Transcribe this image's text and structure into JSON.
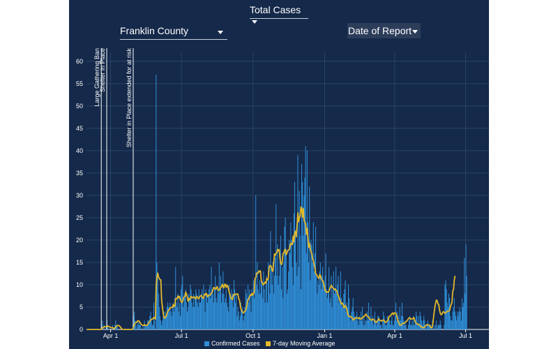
{
  "controls": {
    "metric": "Total Cases",
    "county": "Franklin County",
    "date_basis": "Date of Report"
  },
  "chart_data": {
    "type": "bar",
    "y_ticks": [
      0,
      5,
      10,
      15,
      20,
      25,
      30,
      35,
      40,
      45,
      50,
      55,
      60
    ],
    "ylim": [
      0,
      62
    ],
    "grid": true,
    "x_ticks": [
      "Apr 1",
      "Jul 1",
      "Oct 1",
      "Jan 1",
      "Apr 1",
      "Jul 1"
    ],
    "x_tick_dates": [
      "2020-04-01",
      "2020-07-01",
      "2020-10-01",
      "2021-01-01",
      "2021-04-01",
      "2021-07-01"
    ],
    "x_range": [
      "2020-03-01",
      "2021-07-31"
    ],
    "legend_position": "bottom",
    "annotations": [
      {
        "date": "2020-03-20",
        "label": "Large Gathering Ban"
      },
      {
        "date": "2020-03-27",
        "label": "Shelter in Place"
      },
      {
        "date": "2020-04-30",
        "label": "Shelter in Place extended for at risk"
      }
    ],
    "series": [
      {
        "name": "Confirmed Cases",
        "kind": "bar",
        "color": "#2f8fd8",
        "start_date": "2020-03-01",
        "values": [
          0,
          0,
          0,
          0,
          0,
          0,
          0,
          0,
          0,
          0,
          0,
          0,
          0,
          0,
          0,
          0,
          0,
          0,
          0,
          1,
          2,
          0,
          1,
          0,
          0,
          1,
          2,
          1,
          0,
          0,
          0,
          0,
          0,
          1,
          0,
          0,
          1,
          2,
          1,
          1,
          0,
          0,
          0,
          0,
          0,
          0,
          0,
          0,
          0,
          0,
          0,
          0,
          0,
          0,
          0,
          0,
          0,
          0,
          0,
          1,
          3,
          4,
          2,
          1,
          0,
          2,
          1,
          2,
          1,
          1,
          0,
          0,
          1,
          0,
          2,
          1,
          1,
          1,
          2,
          2,
          2,
          3,
          4,
          2,
          1,
          1,
          6,
          2,
          0,
          57,
          15,
          12,
          8,
          5,
          3,
          2,
          1,
          2,
          3,
          4,
          3,
          4,
          3,
          5,
          6,
          5,
          4,
          6,
          4,
          3,
          5,
          6,
          4,
          7,
          14,
          6,
          5,
          8,
          4,
          6,
          3,
          9,
          10,
          12,
          5,
          8,
          7,
          9,
          6,
          4,
          5,
          8,
          7,
          10,
          9,
          6,
          5,
          8,
          5,
          7,
          9,
          8,
          6,
          5,
          9,
          6,
          6,
          8,
          9,
          7,
          10,
          7,
          4,
          9,
          8,
          6,
          8,
          9,
          10,
          7,
          14,
          9,
          8,
          6,
          9,
          12,
          7,
          6,
          9,
          8,
          15,
          9,
          12,
          6,
          8,
          13,
          8,
          6,
          7,
          9,
          6,
          5,
          4,
          10,
          8,
          7,
          9,
          8,
          5,
          11,
          9,
          6,
          8,
          3,
          5,
          4,
          2,
          3,
          6,
          4,
          5,
          2,
          3,
          5,
          9,
          8,
          7,
          10,
          6,
          9,
          8,
          4,
          9,
          8,
          11,
          7,
          9,
          30,
          10,
          15,
          9,
          8,
          11,
          8,
          12,
          10,
          7,
          13,
          9,
          6,
          10,
          12,
          6,
          15,
          11,
          8,
          22,
          14,
          10,
          15,
          8,
          12,
          16,
          28,
          12,
          19,
          10,
          12,
          17,
          21,
          9,
          14,
          7,
          15,
          23,
          25,
          18,
          8,
          9,
          13,
          20,
          17,
          24,
          20,
          14,
          10,
          26,
          33,
          22,
          15,
          12,
          39,
          14,
          31,
          21,
          9,
          37,
          33,
          21,
          30,
          34,
          41,
          17,
          40,
          24,
          15,
          32,
          11,
          20,
          19,
          15,
          24,
          13,
          17,
          23,
          12,
          8,
          11,
          10,
          13,
          15,
          9,
          12,
          14,
          11,
          9,
          12,
          17,
          9,
          7,
          8,
          14,
          6,
          7,
          12,
          5,
          9,
          13,
          8,
          9,
          14,
          8,
          10,
          12,
          6,
          7,
          13,
          7,
          5,
          6,
          8,
          9,
          11,
          4,
          6,
          5,
          10,
          7,
          3,
          2,
          4,
          5,
          7,
          4,
          3,
          2,
          3,
          4,
          2,
          1,
          3,
          2,
          4,
          2,
          5,
          1,
          3,
          1,
          2,
          2,
          4,
          2,
          6,
          3,
          2,
          5,
          2,
          3,
          1,
          2,
          4,
          2,
          1,
          2,
          3,
          3,
          2,
          1,
          1,
          0,
          2,
          4,
          3,
          2,
          1,
          1,
          3,
          2,
          3,
          2,
          1,
          2,
          3,
          1,
          1,
          2,
          3,
          6,
          2,
          4,
          3,
          2,
          5,
          2,
          3,
          6,
          3,
          2,
          1,
          2,
          1,
          0,
          0,
          1,
          2,
          3,
          1,
          1,
          2,
          1,
          3,
          1,
          2,
          4,
          3,
          1,
          3,
          1,
          4,
          3,
          2,
          1,
          2,
          3,
          2,
          1,
          0,
          1,
          2,
          1,
          1,
          1,
          1,
          0,
          2,
          0,
          1,
          0,
          1,
          2,
          0,
          1,
          1,
          1,
          2,
          1,
          0,
          0,
          0,
          1,
          10,
          11,
          9,
          6,
          5,
          8,
          7,
          3,
          2,
          2,
          4,
          5,
          7,
          4,
          3,
          2,
          4,
          3,
          4,
          5,
          4,
          2,
          7,
          5,
          6,
          16,
          8,
          19,
          12
        ]
      },
      {
        "name": "7-day Moving Average",
        "kind": "line",
        "color": "#e3b92c",
        "start_date": "2020-03-01",
        "values": [
          0,
          0,
          0,
          0,
          0,
          0,
          0,
          0,
          0,
          0,
          0,
          0,
          0,
          0,
          0,
          0,
          0,
          0,
          0,
          0.1,
          0.4,
          0.4,
          0.6,
          0.6,
          0.6,
          0.6,
          0.9,
          0.7,
          0.7,
          0.6,
          0.5,
          0.4,
          0.4,
          0.4,
          0.3,
          0.2,
          0.3,
          0.6,
          0.7,
          0.9,
          0.9,
          0.9,
          0.7,
          0.6,
          0.3,
          0.1,
          0.0,
          0.0,
          0.0,
          0.0,
          0.0,
          0.0,
          0.0,
          0.0,
          0.0,
          0.0,
          0.0,
          0.0,
          0.0,
          0.1,
          0.6,
          1.1,
          1.4,
          1.6,
          1.6,
          1.9,
          1.9,
          1.9,
          1.6,
          1.4,
          1.1,
          1.0,
          0.9,
          0.9,
          1.1,
          0.9,
          0.9,
          0.9,
          1.1,
          1.3,
          1.6,
          1.9,
          2.1,
          2.3,
          2.3,
          2.4,
          2.7,
          2.6,
          2.3,
          9.9,
          11.7,
          12.6,
          11.8,
          11.4,
          11.1,
          11.1,
          6.7,
          5.0,
          3.7,
          2.7,
          2.5,
          2.7,
          3.0,
          3.6,
          4.0,
          4.3,
          4.4,
          4.9,
          4.9,
          4.9,
          5.0,
          5.6,
          5.1,
          5.3,
          6.9,
          6.9,
          6.9,
          7.5,
          7.1,
          7.4,
          6.6,
          6.3,
          6.0,
          6.4,
          7.0,
          7.3,
          7.3,
          8.4,
          7.9,
          7.4,
          6.3,
          6.9,
          6.6,
          7.1,
          7.4,
          7.1,
          7.1,
          7.3,
          7.3,
          6.9,
          6.9,
          7.4,
          7.3,
          6.9,
          6.9,
          7.4,
          7.5,
          7.6,
          7.3,
          7.0,
          7.0,
          7.9,
          7.7,
          8.1,
          7.9,
          7.3,
          7.6,
          7.6,
          7.6,
          7.9,
          8.1,
          8.3,
          8.9,
          9.4,
          9.3,
          9.0,
          9.0,
          9.6,
          9.3,
          8.7,
          8.9,
          9.0,
          9.5,
          9.5,
          10.1,
          9.7,
          9.3,
          10.1,
          10.1,
          9.4,
          9.9,
          9.7,
          9.0,
          8.3,
          7.7,
          7.0,
          6.9,
          6.7,
          7.6,
          7.9,
          7.7,
          7.9,
          7.9,
          8.0,
          7.9,
          6.9,
          6.6,
          5.4,
          4.6,
          4.1,
          3.9,
          3.7,
          3.9,
          4.1,
          4.3,
          4.9,
          5.9,
          6.6,
          6.9,
          7.4,
          7.7,
          7.6,
          8.1,
          7.7,
          7.9,
          8.4,
          11.4,
          11.6,
          12.6,
          12.6,
          12.6,
          13.1,
          12.9,
          13.1,
          10.9,
          10.6,
          10.0,
          10.1,
          10.3,
          10.6,
          10.3,
          11.4,
          11.1,
          11.3,
          13.7,
          14.3,
          14.3,
          14.0,
          13.2,
          13.0,
          14.9,
          16.9,
          16.6,
          17.0,
          17.2,
          17.9,
          17.6,
          17.9,
          16.0,
          14.9,
          14.5,
          15.1,
          17.0,
          17.1,
          17.8,
          17.9,
          16.7,
          17.1,
          17.7,
          17.8,
          17.9,
          18.7,
          19.3,
          19.0,
          19.0,
          20.9,
          19.6,
          21.6,
          22.0,
          20.7,
          23.3,
          26.1,
          24.1,
          24.9,
          25.4,
          27.4,
          26.9,
          25.1,
          27.1,
          24.4,
          23.9,
          23.7,
          21.3,
          22.6,
          20.6,
          18.4,
          19.3,
          18.0,
          17.3,
          17.0,
          15.7,
          15.4,
          14.4,
          13.7,
          12.4,
          12.3,
          11.9,
          11.7,
          11.4,
          12.3,
          12.1,
          11.4,
          11.0,
          10.9,
          10.4,
          9.7,
          8.7,
          8.6,
          8.3,
          8.4,
          8.3,
          8.6,
          9.1,
          9.4,
          9.9,
          9.6,
          9.3,
          9.1,
          8.9,
          9.1,
          8.7,
          8.7,
          7.9,
          7.6,
          7.1,
          6.4,
          6.1,
          5.7,
          5.9,
          5.6,
          4.9,
          5.0,
          5.4,
          4.9,
          4.4,
          3.6,
          3.0,
          2.9,
          2.9,
          2.9,
          2.7,
          2.6,
          2.1,
          2.3,
          2.3,
          2.6,
          2.6,
          2.6,
          2.6,
          2.4,
          2.6,
          2.4,
          2.3,
          2.4,
          2.7,
          2.7,
          3.0,
          3.0,
          3.4,
          3.4,
          3.0,
          2.9,
          2.7,
          2.4,
          2.3,
          2.1,
          2.1,
          2.3,
          2.3,
          2.1,
          1.9,
          1.6,
          1.6,
          1.9,
          2.1,
          2.4,
          2.1,
          2.0,
          1.9,
          1.9,
          2.1,
          2.1,
          2.0,
          1.6,
          1.6,
          1.7,
          1.9,
          2.1,
          2.9,
          2.9,
          3.1,
          3.3,
          3.6,
          3.7,
          3.3,
          3.7,
          3.7,
          3.6,
          3.1,
          2.3,
          1.7,
          1.4,
          1.0,
          0.9,
          1.0,
          1.3,
          1.4,
          1.4,
          1.4,
          1.6,
          1.7,
          1.9,
          2.1,
          2.4,
          2.6,
          2.6,
          2.3,
          2.3,
          2.4,
          2.4,
          2.7,
          2.1,
          1.7,
          1.4,
          1.3,
          1.1,
          1.1,
          1.1,
          0.9,
          0.6,
          0.6,
          0.4,
          0.4,
          0.4,
          0.6,
          0.9,
          0.9,
          1.1,
          1.0,
          1.0,
          1.0,
          0.7,
          0.4,
          0.4,
          0.7,
          2.1,
          3.7,
          5.0,
          5.9,
          6.6,
          6.4,
          5.7,
          5.6,
          4.4,
          3.6,
          3.3,
          3.4,
          3.8,
          4.0,
          3.8,
          3.6,
          3.7,
          3.9,
          4.1,
          4.1,
          4.1,
          4.3,
          5.1,
          5.6,
          6.0,
          8.6,
          8.9,
          11.1,
          12.0
        ]
      }
    ]
  }
}
